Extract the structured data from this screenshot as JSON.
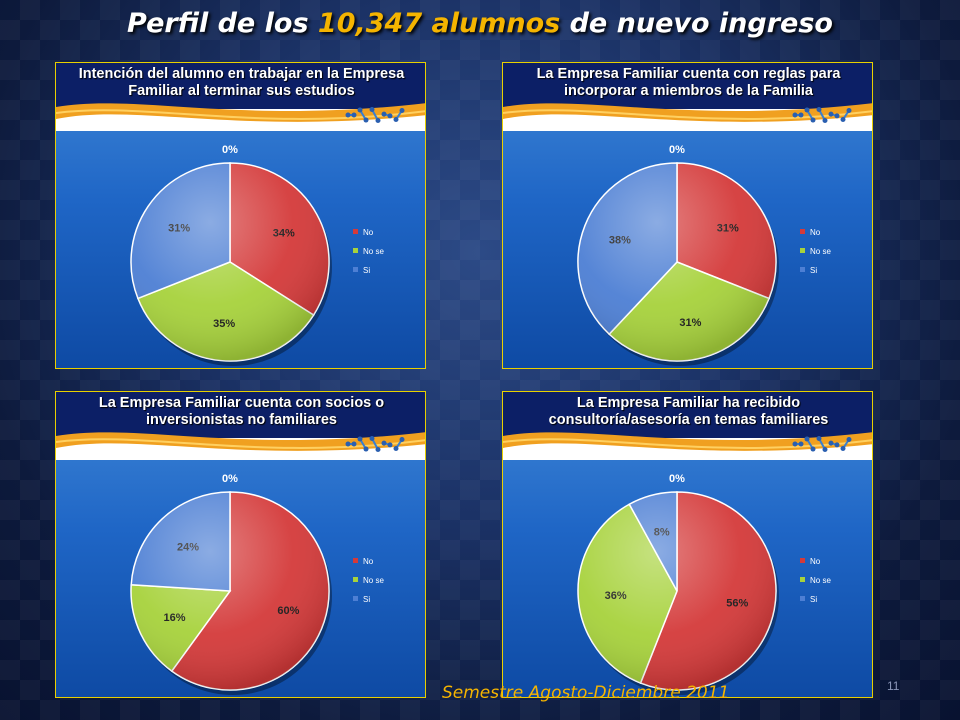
{
  "title": {
    "prefix": "Perfil de los ",
    "highlight": "10,347 alumnos",
    "suffix": " de nuevo ingreso"
  },
  "footer": "Semestre Agosto-Diciembre 2011",
  "page_number": "11",
  "colors": {
    "no": "#d43a3a",
    "no_se": "#a7d23c",
    "si": "#4d7fd4",
    "accent": "#f5b400"
  },
  "chart_data": [
    {
      "type": "pie",
      "title": "Intención del alumno en trabajar en la Empresa Familiar al terminar sus estudios",
      "categories": [
        "No",
        "No se",
        "Si"
      ],
      "values": [
        34,
        35,
        31
      ],
      "labels": [
        "34%",
        "35%",
        "31%"
      ],
      "zero_label": "0%",
      "legend_position": "right"
    },
    {
      "type": "pie",
      "title": "La Empresa Familiar cuenta con reglas para incorporar a miembros de la Familia",
      "categories": [
        "No",
        "No se",
        "Si"
      ],
      "values": [
        31,
        31,
        38
      ],
      "labels": [
        "31%",
        "31%",
        "38%"
      ],
      "zero_label": "0%",
      "legend_position": "right"
    },
    {
      "type": "pie",
      "title": "La Empresa Familiar cuenta con socios o inversionistas no familiares",
      "categories": [
        "No",
        "No se",
        "Si"
      ],
      "values": [
        60,
        16,
        24
      ],
      "labels": [
        "60%",
        "16%",
        "24%"
      ],
      "zero_label": "0%",
      "legend_position": "right"
    },
    {
      "type": "pie",
      "title": "La Empresa Familiar ha recibido consultoría/asesoría en temas familiares",
      "categories": [
        "No",
        "No se",
        "Si"
      ],
      "values": [
        56,
        36,
        8
      ],
      "labels": [
        "56%",
        "36%",
        "8%"
      ],
      "zero_label": "0%",
      "legend_position": "right"
    }
  ]
}
